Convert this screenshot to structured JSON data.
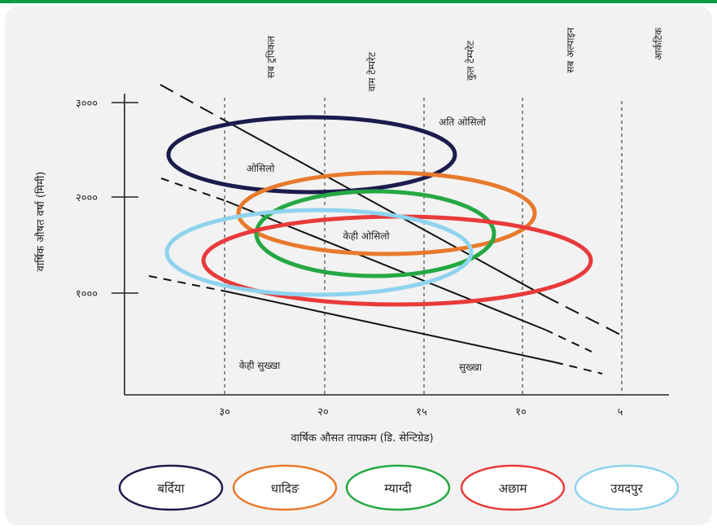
{
  "figure": {
    "y_axis_title": "वार्षिक औषत वर्षा (मिमी)",
    "x_axis_title": "वार्षिक औसत तापक्रम (डि. सेन्टिग्रेड)",
    "y_ticks": [
      "३०००",
      "२०००",
      "१०००"
    ],
    "x_ticks": [
      "३०",
      "२०",
      "१५",
      "१०",
      "५"
    ],
    "zones": [
      "सब ट्रपिकल",
      "वाम टेम्परेट",
      "कुल टेम्परेट",
      "सब अल्पाइन",
      "आर्कटिक"
    ],
    "regions": {
      "very_wet": "अति ओसिलो",
      "wet": "ओसिलो",
      "somewhat_wet": "केही ओसिलो",
      "somewhat_dry": "केही सुख्खा",
      "dry": "सुख्खा"
    }
  },
  "legend": [
    {
      "label": "बर्दिया",
      "color": "#1b1b4d"
    },
    {
      "label": "धादिङ",
      "color": "#e87a2d"
    },
    {
      "label": "म्याग्दी",
      "color": "#25a843"
    },
    {
      "label": "अछाम",
      "color": "#e83a3a"
    },
    {
      "label": "उयदपुर",
      "color": "#8fd3ee"
    }
  ]
}
